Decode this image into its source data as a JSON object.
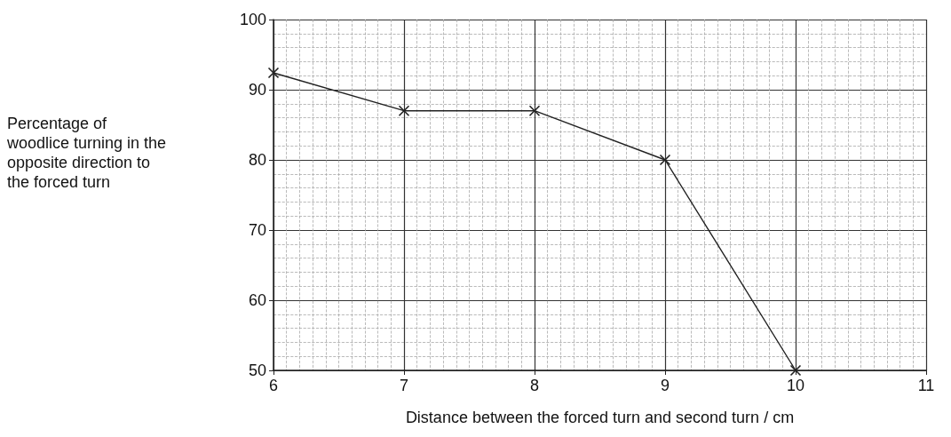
{
  "chart_data": {
    "type": "line",
    "xlabel": "Distance between the forced turn and second turn / cm",
    "ylabel": "Percentage of woodlice turning in the opposite direction to the forced turn",
    "x": [
      6,
      7,
      8,
      9,
      10
    ],
    "series": [
      {
        "color": "#222222",
        "values": [
          92.4,
          87,
          87,
          80,
          50
        ]
      }
    ],
    "xlim": [
      6,
      11
    ],
    "xticks": [
      6,
      7,
      8,
      9,
      10,
      11
    ],
    "ylim": [
      50,
      100
    ],
    "yticks": [
      50,
      60,
      70,
      80,
      90,
      100
    ],
    "grid": true,
    "marker": "cross",
    "line_style": "solid"
  }
}
